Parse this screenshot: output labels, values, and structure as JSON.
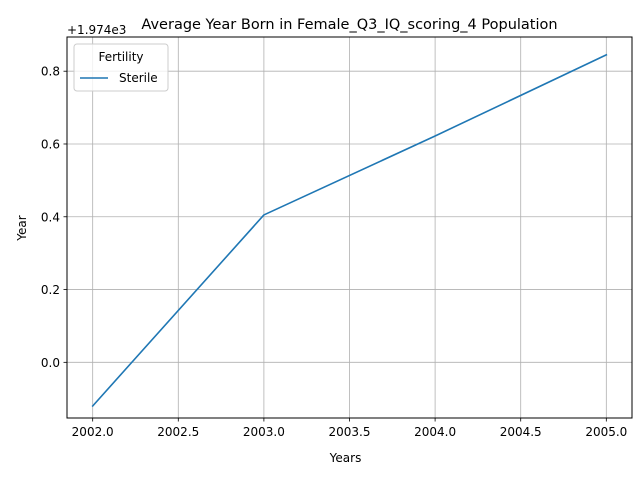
{
  "chart_data": {
    "type": "line",
    "title": "Average Year Born in Female_Q3_IQ_scoring_4 Population",
    "xlabel": "Years",
    "ylabel": "Year",
    "offset_label": "+1.974e3",
    "x": [
      2002,
      2003,
      2004,
      2005
    ],
    "x_ticks": [
      2002.0,
      2002.5,
      2003.0,
      2003.5,
      2004.0,
      2004.5,
      2005.0
    ],
    "x_tick_labels": [
      "2002.0",
      "2002.5",
      "2003.0",
      "2003.5",
      "2004.0",
      "2004.5",
      "2005.0"
    ],
    "y_ticks": [
      0.0,
      0.2,
      0.4,
      0.6,
      0.8
    ],
    "y_tick_labels": [
      "0.0",
      "0.2",
      "0.4",
      "0.6",
      "0.8"
    ],
    "xlim": [
      2001.85,
      2005.15
    ],
    "ylim": [
      -0.153,
      0.894
    ],
    "grid": true,
    "legend": {
      "title": "Fertility",
      "position": "top-left"
    },
    "series": [
      {
        "name": "Sterile",
        "color": "#1f77b4",
        "values": [
          -0.12,
          0.405,
          0.622,
          0.845
        ]
      }
    ]
  }
}
